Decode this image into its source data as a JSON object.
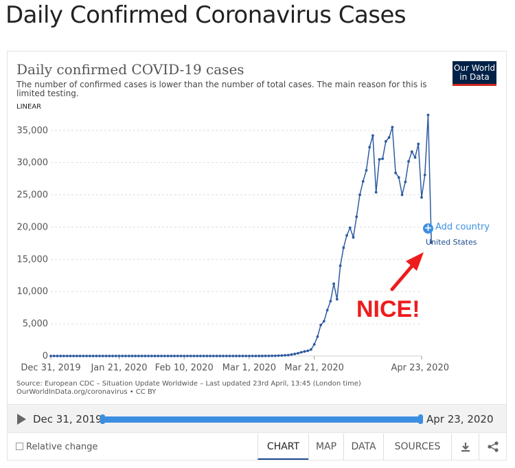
{
  "page": {
    "heading": "Daily Confirmed Coronavirus Cases"
  },
  "chart": {
    "title": "Daily confirmed COVID-19 cases",
    "subtitle": "The number of confirmed cases is lower than the number of total cases. The main reason for this is limited testing.",
    "scale_toggle": "LINEAR",
    "logo_line1": "Our World",
    "logo_line2": "in Data",
    "add_country_label": "Add country",
    "series_label": "United States",
    "annotation": "NICE!",
    "source_line1": "Source: European CDC – Situation Update Worldwide – Last updated 23rd April, 13:45 (London time)",
    "source_line2": "OurWorldInData.org/coronavirus • CC BY"
  },
  "colors": {
    "line": "#2d5aa0",
    "accent": "#3c8fe0",
    "annotation": "#ee1c1c",
    "logo_bg": "#002147",
    "logo_stripe": "#ce261e"
  },
  "icons": {
    "play": "play-icon",
    "download": "download-icon",
    "share": "share-icon",
    "plus": "plus-circle-icon",
    "arrow": "red-arrow"
  },
  "timeline": {
    "start_label": "Dec 31, 2019",
    "end_label": "Apr 23, 2020"
  },
  "footer": {
    "relative_change_label": "Relative change",
    "tabs": [
      "CHART",
      "MAP",
      "DATA",
      "SOURCES"
    ],
    "active_tab": "CHART"
  },
  "chart_data": {
    "type": "line",
    "title": "Daily confirmed COVID-19 cases",
    "xlabel": "",
    "ylabel": "",
    "x_tick_labels": [
      "Dec 31, 2019",
      "Jan 21, 2020",
      "Feb 10, 2020",
      "Mar 1, 2020",
      "Mar 21, 2020",
      "Apr 23, 2020"
    ],
    "x_tick_days": [
      0,
      21,
      41,
      61,
      81,
      114
    ],
    "y_ticks": [
      0,
      5000,
      10000,
      15000,
      20000,
      25000,
      30000,
      35000
    ],
    "y_tick_labels": [
      "0",
      "5,000",
      "10,000",
      "15,000",
      "20,000",
      "25,000",
      "30,000",
      "35,000"
    ],
    "ylim": [
      0,
      37000
    ],
    "grid": "horizontal",
    "series": [
      {
        "name": "United States",
        "start_date": "Dec 31, 2019",
        "values": [
          0,
          0,
          0,
          0,
          0,
          0,
          0,
          0,
          0,
          0,
          0,
          0,
          0,
          0,
          0,
          0,
          0,
          0,
          0,
          0,
          0,
          1,
          0,
          0,
          1,
          0,
          1,
          0,
          0,
          0,
          0,
          0,
          1,
          0,
          1,
          0,
          0,
          0,
          0,
          0,
          0,
          1,
          0,
          0,
          0,
          0,
          0,
          0,
          0,
          0,
          0,
          0,
          0,
          0,
          0,
          0,
          0,
          0,
          0,
          0,
          0,
          0,
          0,
          3,
          5,
          6,
          9,
          11,
          21,
          30,
          52,
          65,
          106,
          132,
          226,
          312,
          423,
          575,
          700,
          800,
          1000,
          1800,
          3000,
          4800,
          5400,
          7100,
          8500,
          11200,
          8800,
          14000,
          16800,
          18700,
          19900,
          18400,
          21600,
          25000,
          27100,
          28800,
          32400,
          34200,
          25400,
          30500,
          30600,
          33300,
          33900,
          35500,
          28400,
          27700,
          25000,
          27000,
          30200,
          31700,
          30800,
          32900,
          24600,
          28100,
          37400,
          17600
        ]
      }
    ]
  }
}
